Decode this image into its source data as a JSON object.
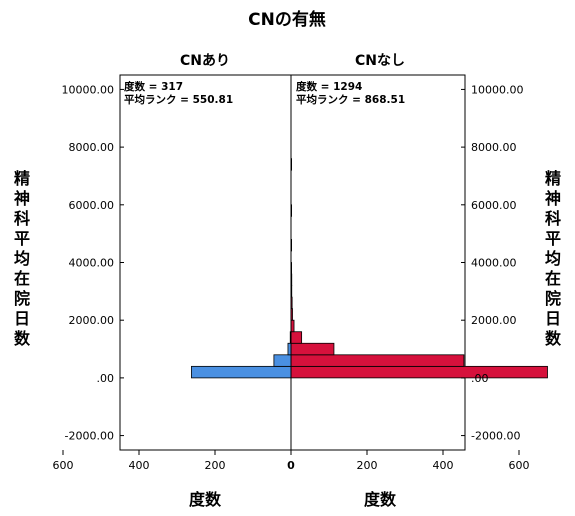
{
  "chart_data": {
    "type": "bar",
    "title": "CNの有無",
    "ylabel": "精神科平均在院日数",
    "xlabel": "度数",
    "ylim": [
      -2500,
      10500
    ],
    "y_ticks": [
      10000,
      8000,
      6000,
      4000,
      2000,
      0,
      -2000
    ],
    "y_tick_labels": [
      "10000.00",
      "8000.00",
      "6000.00",
      "4000.00",
      "2000.00",
      ".00",
      "-2000.00"
    ],
    "x_ticks_left": [
      600,
      400,
      200,
      0
    ],
    "x_ticks_right": [
      0,
      200,
      400,
      600
    ],
    "x_max": 750,
    "bin_width": 400,
    "grid": false,
    "colors": {
      "left": "#4a90e2",
      "right": "#d6113c"
    },
    "panels": [
      {
        "name": "CNあり",
        "side": "left",
        "color": "#4a90e2",
        "stat_count": "度数 = 317",
        "stat_rank": "平均ランク = 550.81",
        "bins": [
          {
            "y0": 0,
            "y1": 400,
            "count": 262
          },
          {
            "y0": 400,
            "y1": 800,
            "count": 45
          },
          {
            "y0": 800,
            "y1": 1200,
            "count": 8
          },
          {
            "y0": 1200,
            "y1": 1600,
            "count": 2
          }
        ]
      },
      {
        "name": "CNなし",
        "side": "right",
        "color": "#d6113c",
        "stat_count": "度数 = 1294",
        "stat_rank": "平均ランク = 868.51",
        "bins": [
          {
            "y0": 0,
            "y1": 400,
            "count": 675
          },
          {
            "y0": 400,
            "y1": 800,
            "count": 455
          },
          {
            "y0": 800,
            "y1": 1200,
            "count": 113
          },
          {
            "y0": 1200,
            "y1": 1600,
            "count": 28
          },
          {
            "y0": 1600,
            "y1": 2000,
            "count": 8
          },
          {
            "y0": 2000,
            "y1": 2400,
            "count": 4
          },
          {
            "y0": 2400,
            "y1": 2800,
            "count": 3
          },
          {
            "y0": 2800,
            "y1": 3200,
            "count": 2
          },
          {
            "y0": 3200,
            "y1": 3600,
            "count": 2
          },
          {
            "y0": 3600,
            "y1": 4000,
            "count": 1
          },
          {
            "y0": 4400,
            "y1": 4800,
            "count": 1
          },
          {
            "y0": 5600,
            "y1": 6000,
            "count": 1
          },
          {
            "y0": 7200,
            "y1": 7600,
            "count": 1
          }
        ]
      }
    ]
  }
}
